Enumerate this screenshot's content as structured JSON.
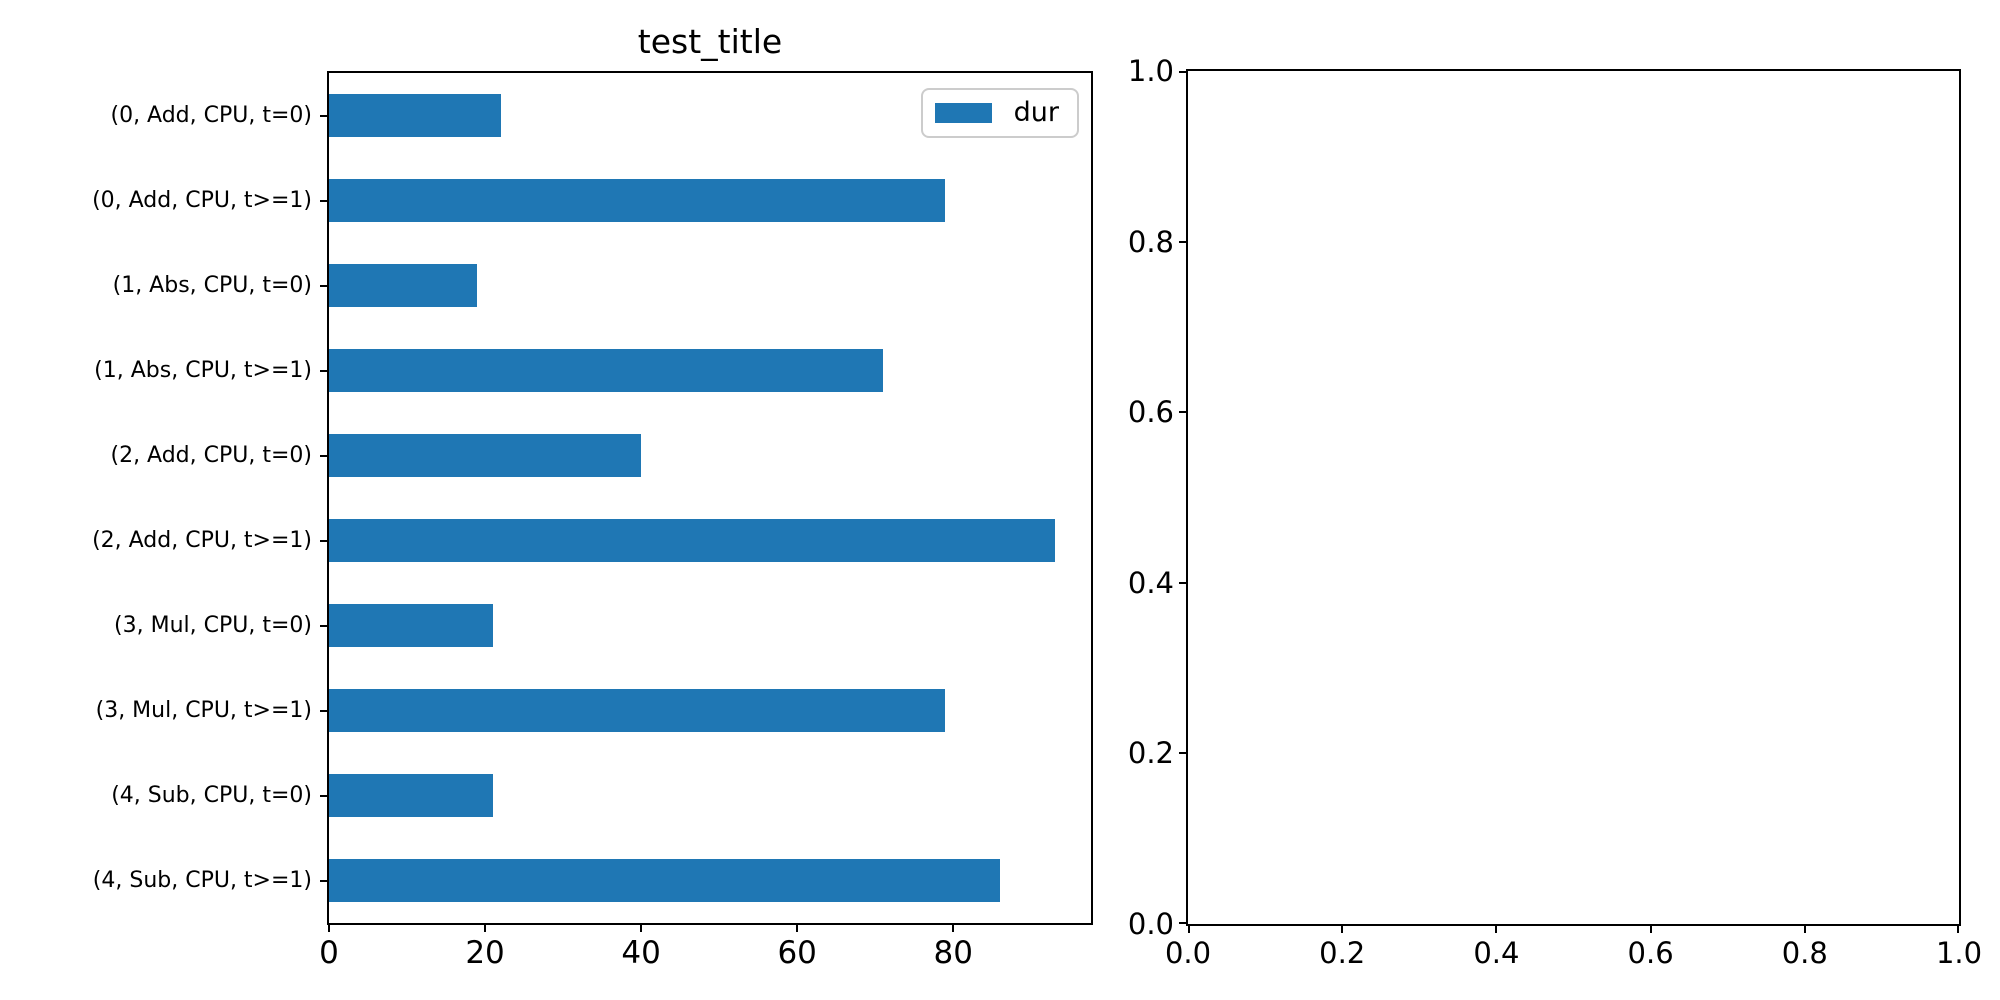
{
  "figure": {
    "background": "#ffffff",
    "title": "test_title"
  },
  "colors": {
    "bar": "#1f77b4",
    "spine": "#000000",
    "legend_edge": "#cccccc"
  },
  "legend": {
    "label": "dur",
    "position": "upper right"
  },
  "chart_data": [
    {
      "type": "bar",
      "orientation": "horizontal",
      "title": "test_title",
      "categories": [
        "(0, Add, CPU, t=0)",
        "(0, Add, CPU, t>=1)",
        "(1, Abs, CPU, t=0)",
        "(1, Abs, CPU, t>=1)",
        "(2, Add, CPU, t=0)",
        "(2, Add, CPU, t>=1)",
        "(3, Mul, CPU, t=0)",
        "(3, Mul, CPU, t>=1)",
        "(4, Sub, CPU, t=0)",
        "(4, Sub, CPU, t>=1)"
      ],
      "first_category_at_top": true,
      "series": [
        {
          "name": "dur",
          "color": "#1f77b4",
          "values": [
            22,
            79,
            19,
            71,
            40,
            93,
            21,
            79,
            21,
            86
          ]
        }
      ],
      "xlabel": "",
      "ylabel": "",
      "xlim": [
        0,
        97.65
      ],
      "x_ticks": [
        "0",
        "20",
        "40",
        "60",
        "80"
      ],
      "grid": false,
      "legend_entries": [
        "dur"
      ]
    },
    {
      "type": "empty",
      "title": "",
      "xlim": [
        0,
        1
      ],
      "ylim": [
        0,
        1
      ],
      "x_ticks": [
        "0.0",
        "0.2",
        "0.4",
        "0.6",
        "0.8",
        "1.0"
      ],
      "y_ticks": [
        "0.0",
        "0.2",
        "0.4",
        "0.6",
        "0.8",
        "1.0"
      ],
      "grid": false
    }
  ]
}
